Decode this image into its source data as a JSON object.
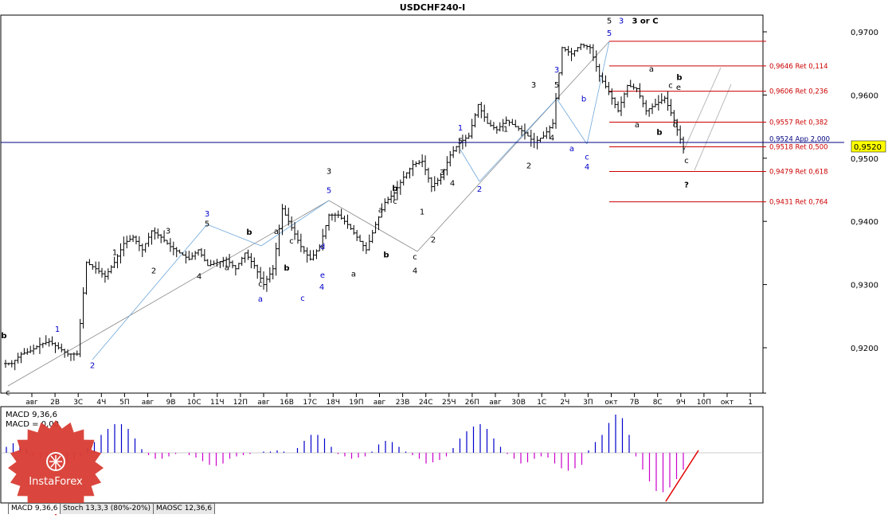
{
  "window": {
    "title": "USDCHF240-I"
  },
  "colors": {
    "price_bar": "#000000",
    "wave_blue": "#0000cc",
    "fib_red": "#cc0000",
    "macd_pos": "#0000cc",
    "macd_neg": "#cc00cc",
    "last_price_bg": "#ffff00"
  },
  "chart_data": [
    {
      "type": "ohlc",
      "title": "USDCHF240-I",
      "y_axis": {
        "ylim": [
          0.9133,
          0.9737
        ],
        "ticks": [
          "0,9700",
          "0,9600",
          "0,9500",
          "0,9400",
          "0,9300",
          "0,9200"
        ],
        "tick_values": [
          0.97,
          0.96,
          0.95,
          0.94,
          0.93,
          0.92
        ]
      },
      "x_axis": {
        "tick_labels": [
          "авг",
          "2В",
          "3С",
          "4Ч",
          "5П",
          "авг",
          "9В",
          "10С",
          "11Ч",
          "12П",
          "авг",
          "16В",
          "17С",
          "18Ч",
          "19П",
          "авг",
          "23В",
          "24С",
          "25Ч",
          "26П",
          "авг",
          "30В",
          "1С",
          "2Ч",
          "3П",
          "окт",
          "7В",
          "8С",
          "9Ч",
          "10П",
          "окт",
          "1"
        ]
      },
      "last_price": {
        "label": "0,9520",
        "value": 0.952
      },
      "price_path": [
        0.9175,
        0.9175,
        0.919,
        0.9195,
        0.9205,
        0.921,
        0.92,
        0.919,
        0.919,
        0.9335,
        0.9325,
        0.9313,
        0.9335,
        0.9365,
        0.9375,
        0.9355,
        0.9385,
        0.9375,
        0.936,
        0.935,
        0.934,
        0.9355,
        0.933,
        0.9335,
        0.934,
        0.9325,
        0.935,
        0.933,
        0.93,
        0.9325,
        0.942,
        0.939,
        0.936,
        0.934,
        0.936,
        0.941,
        0.941,
        0.9395,
        0.9375,
        0.9355,
        0.9395,
        0.943,
        0.9445,
        0.947,
        0.949,
        0.9495,
        0.9455,
        0.947,
        0.9505,
        0.9525,
        0.9535,
        0.9585,
        0.9555,
        0.9545,
        0.956,
        0.955,
        0.954,
        0.9525,
        0.9535,
        0.9555,
        0.9675,
        0.9665,
        0.968,
        0.9675,
        0.963,
        0.9605,
        0.9575,
        0.9615,
        0.961,
        0.9575,
        0.9585,
        0.9595,
        0.956,
        0.9515
      ],
      "waves": {
        "black_labels": [
          {
            "text": "b",
            "x": 5,
            "y": 0.9215
          },
          {
            "text": "c",
            "x": 10,
            "y": 0.9125
          },
          {
            "text": "1",
            "x": 144,
            "y": 0.9347
          },
          {
            "text": "2",
            "x": 193,
            "y": 0.9318
          },
          {
            "text": "3",
            "x": 211,
            "y": 0.9381
          },
          {
            "text": "4",
            "x": 250,
            "y": 0.9309
          },
          {
            "text": "5",
            "x": 260,
            "y": 0.9392
          },
          {
            "text": "a",
            "x": 285,
            "y": 0.9323
          },
          {
            "text": "b",
            "x": 313,
            "y": 0.9379
          },
          {
            "text": "c",
            "x": 327,
            "y": 0.9297
          },
          {
            "text": "a",
            "x": 347,
            "y": 0.938
          },
          {
            "text": "b",
            "x": 360,
            "y": 0.9322
          },
          {
            "text": "c",
            "x": 366,
            "y": 0.9365
          },
          {
            "text": "3",
            "x": 413,
            "y": 0.9475
          },
          {
            "text": "a",
            "x": 444,
            "y": 0.9313
          },
          {
            "text": "a",
            "x": 478,
            "y": 0.9414
          },
          {
            "text": "b",
            "x": 485,
            "y": 0.9343
          },
          {
            "text": "c",
            "x": 496,
            "y": 0.9428
          },
          {
            "text": "b",
            "x": 496,
            "y": 0.9448
          },
          {
            "text": "1",
            "x": 530,
            "y": 0.9411
          },
          {
            "text": "c",
            "x": 521,
            "y": 0.934
          },
          {
            "text": "4",
            "x": 521,
            "y": 0.9318
          },
          {
            "text": "2",
            "x": 544,
            "y": 0.9367
          },
          {
            "text": "3",
            "x": 555,
            "y": 0.9473
          },
          {
            "text": "4",
            "x": 568,
            "y": 0.9456
          },
          {
            "text": "5",
            "x": 578,
            "y": 0.9523
          },
          {
            "text": "1",
            "x": 635,
            "y": 0.9542
          },
          {
            "text": "2",
            "x": 664,
            "y": 0.9484
          },
          {
            "text": "3",
            "x": 670,
            "y": 0.9612
          },
          {
            "text": "4",
            "x": 693,
            "y": 0.9528
          },
          {
            "text": "5",
            "x": 699,
            "y": 0.9612
          },
          {
            "text": "5",
            "x": 765,
            "y": 0.9713
          },
          {
            "text": "3 or C",
            "x": 810,
            "y": 0.9713
          },
          {
            "text": "a",
            "x": 818,
            "y": 0.9637
          },
          {
            "text": "a",
            "x": 800,
            "y": 0.9549
          },
          {
            "text": "b",
            "x": 828,
            "y": 0.9537
          },
          {
            "text": "b",
            "x": 853,
            "y": 0.9624
          },
          {
            "text": "c",
            "x": 842,
            "y": 0.9611
          },
          {
            "text": "e",
            "x": 852,
            "y": 0.9608
          },
          {
            "text": "d",
            "x": 848,
            "y": 0.9549
          },
          {
            "text": "c",
            "x": 862,
            "y": 0.9492
          },
          {
            "text": "?",
            "x": 862,
            "y": 0.9454
          }
        ],
        "blue_labels": [
          {
            "text": "1",
            "x": 72,
            "y": 0.9225
          },
          {
            "text": "2",
            "x": 116,
            "y": 0.9168
          },
          {
            "text": "3",
            "x": 260,
            "y": 0.9408
          },
          {
            "text": "a",
            "x": 327,
            "y": 0.9273
          },
          {
            "text": "c",
            "x": 380,
            "y": 0.9274
          },
          {
            "text": "d",
            "x": 405,
            "y": 0.9356
          },
          {
            "text": "e",
            "x": 405,
            "y": 0.9311
          },
          {
            "text": "4",
            "x": 404,
            "y": 0.9292
          },
          {
            "text": "5",
            "x": 413,
            "y": 0.9445
          },
          {
            "text": "1",
            "x": 578,
            "y": 0.9544
          },
          {
            "text": "2",
            "x": 602,
            "y": 0.9447
          },
          {
            "text": "3",
            "x": 699,
            "y": 0.9636
          },
          {
            "text": "a",
            "x": 718,
            "y": 0.9511
          },
          {
            "text": "b",
            "x": 733,
            "y": 0.959
          },
          {
            "text": "c",
            "x": 737,
            "y": 0.9498
          },
          {
            "text": "4",
            "x": 737,
            "y": 0.9482
          },
          {
            "text": "3",
            "x": 780,
            "y": 0.9713
          },
          {
            "text": "5",
            "x": 765,
            "y": 0.9694
          }
        ]
      },
      "fib_levels": [
        {
          "label": "",
          "value": 0.9685
        },
        {
          "label": "0,9646 Ret 0,114",
          "value": 0.9646
        },
        {
          "label": "0,9606 Ret 0,236",
          "value": 0.9606
        },
        {
          "label": "0,9557 Ret 0,382",
          "value": 0.9557
        },
        {
          "label": "0,9518 Ret 0,500",
          "value": 0.9518
        },
        {
          "label": "0,9479 Ret 0,618",
          "value": 0.9479
        },
        {
          "label": "0,9431 Ret 0,764",
          "value": 0.9431
        }
      ],
      "projection_label": {
        "text": "0,9524 App 2,000",
        "value": 0.9524
      }
    },
    {
      "type": "histogram",
      "title": "MACD 9,36,6",
      "legend": [
        "MACD 9,36,6",
        "MACD = 0,00"
      ],
      "values": [
        0.5,
        0.8,
        0.6,
        0.3,
        -0.3,
        -0.5,
        -0.7,
        -1.0,
        -1.1,
        -0.9,
        -0.6,
        -0.3,
        0.4,
        0.9,
        1.5,
        2.0,
        2.4,
        2.4,
        2.0,
        1.2,
        0.3,
        -0.2,
        -0.5,
        -0.5,
        -0.3,
        -0.1,
        0.0,
        -0.2,
        -0.4,
        -0.7,
        -1.0,
        -1.1,
        -0.9,
        -0.5,
        -0.3,
        -0.2,
        -0.1,
        0.0,
        0.1,
        0.1,
        0.2,
        0.1,
        0.0,
        0.4,
        1.0,
        1.5,
        1.5,
        1.2,
        0.5,
        -0.1,
        -0.3,
        -0.5,
        -0.4,
        -0.3,
        0.1,
        0.7,
        1.0,
        0.9,
        0.5,
        0.1,
        -0.2,
        -0.5,
        -0.9,
        -0.8,
        -0.6,
        -0.3,
        0.4,
        1.2,
        1.8,
        2.2,
        2.4,
        2.0,
        1.2,
        0.5,
        -0.1,
        -0.5,
        -0.9,
        -0.8,
        -0.5,
        -0.3,
        -0.4,
        -0.9,
        -1.3,
        -1.5,
        -1.3,
        -1.0,
        0.2,
        0.9,
        1.5,
        2.5,
        3.2,
        2.9,
        1.5,
        -0.3,
        -1.4,
        -2.4,
        -3.2,
        -3.3,
        -2.9,
        -2.2,
        -1.4
      ]
    }
  ],
  "watermark": {
    "brand": "InstaForex"
  },
  "indicator_tabs": [
    "MACD 9,36,6",
    "Stoch 13,3,3 (80%-20%)",
    "MAOSC 12,36,6"
  ]
}
